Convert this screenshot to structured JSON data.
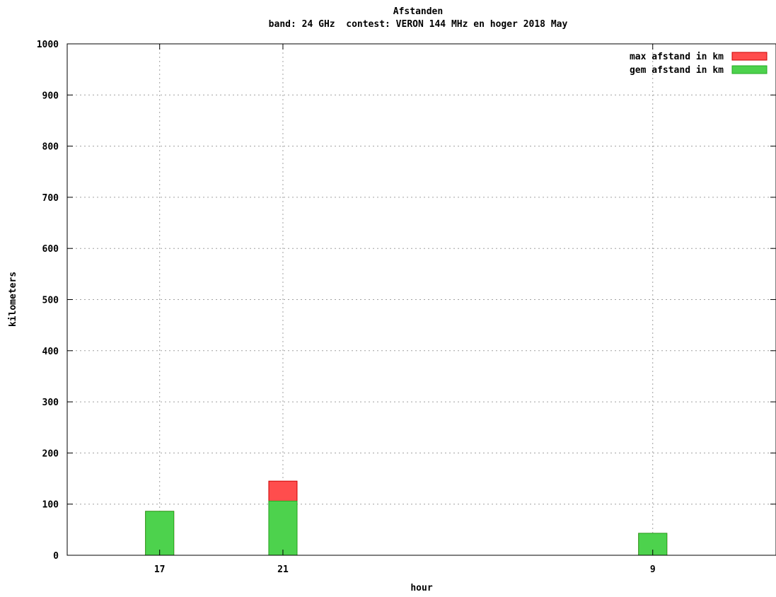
{
  "chart_data": {
    "type": "bar",
    "title": "Afstanden",
    "subtitle": "band: 24 GHz  contest: VERON 144 MHz en hoger 2018 May",
    "xlabel": "hour",
    "ylabel": "kilometers",
    "ylim": [
      0,
      1000
    ],
    "yticks": [
      "0",
      "100",
      "200",
      "300",
      "400",
      "500",
      "600",
      "700",
      "800",
      "900",
      "1000"
    ],
    "categories": [
      "17",
      "21",
      "9"
    ],
    "category_slots": [
      0.75,
      1.75,
      4.75
    ],
    "x_range": [
      0,
      5.75
    ],
    "grid": true,
    "legend_position": "top-right",
    "series": [
      {
        "name": "max afstand in km",
        "color": "#ff4d4d",
        "values": [
          86,
          145,
          43
        ]
      },
      {
        "name": "gem afstand in km",
        "color": "#4dd24d",
        "values": [
          86,
          106,
          43
        ]
      }
    ]
  }
}
